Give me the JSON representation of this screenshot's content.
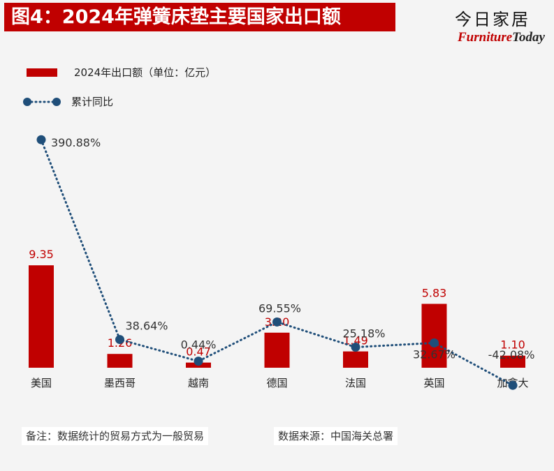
{
  "header": {
    "title": "图4：2024年弹簧床垫主要国家出口额",
    "logo_cn": "今日家居",
    "logo_en_a": "Furniture",
    "logo_en_b": "Today"
  },
  "legend": {
    "bar_label": "2024年出口额（单位：亿元）",
    "line_label": "累计同比"
  },
  "notes": {
    "remark": "备注：数据统计的贸易方式为一般贸易",
    "source": "数据来源：中国海关总署"
  },
  "colors": {
    "bar": "#c00000",
    "line": "#1f4e79",
    "bar_label": "#c00000",
    "line_label": "#333333"
  },
  "chart_data": {
    "type": "bar",
    "categories": [
      "美国",
      "墨西哥",
      "越南",
      "德国",
      "法国",
      "英国",
      "加拿大"
    ],
    "series": [
      {
        "name": "2024年出口额（单位：亿元）",
        "type": "bar",
        "values": [
          9.35,
          1.26,
          0.47,
          3.2,
          1.49,
          5.83,
          1.1
        ],
        "labels": [
          "9.35",
          "1.26",
          "0.47",
          "3.20",
          "1.49",
          "5.83",
          "1.10"
        ]
      },
      {
        "name": "累计同比",
        "type": "line",
        "values": [
          390.88,
          38.64,
          0.44,
          69.55,
          25.18,
          32.67,
          -42.08
        ],
        "labels": [
          "390.88%",
          "38.64%",
          "0.44%",
          "69.55%",
          "25.18%",
          "32.67%",
          "-42.08%"
        ]
      }
    ]
  }
}
